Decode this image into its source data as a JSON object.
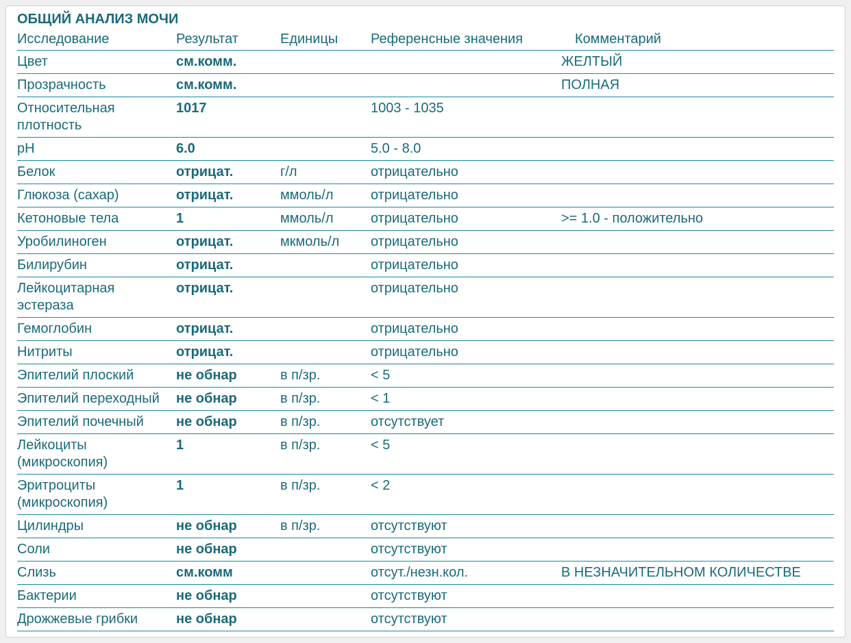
{
  "title": "ОБЩИЙ АНАЛИЗ МОЧИ",
  "colors": {
    "text": "#1a6a7a",
    "border": "#1a8a9a",
    "panel_bg": "#ffffff",
    "page_bg": "#f0f0f0"
  },
  "columns": {
    "study": "Исследование",
    "result": "Результат",
    "units": "Единицы",
    "reference": "Референсные значения",
    "comment": "Комментарий"
  },
  "rows": [
    {
      "study": "Цвет",
      "result": "см.комм.",
      "units": "",
      "reference": "",
      "comment": "ЖЕЛТЫЙ"
    },
    {
      "study": "Прозрачность",
      "result": "см.комм.",
      "units": "",
      "reference": "",
      "comment": "ПОЛНАЯ"
    },
    {
      "study": "Относительная плотность",
      "result": "1017",
      "units": "",
      "reference": "1003 - 1035",
      "comment": ""
    },
    {
      "study": "pH",
      "result": "6.0",
      "units": "",
      "reference": "5.0 - 8.0",
      "comment": ""
    },
    {
      "study": "Белок",
      "result": "отрицат.",
      "units": "г/л",
      "reference": "отрицательно",
      "comment": ""
    },
    {
      "study": "Глюкоза (сахар)",
      "result": "отрицат.",
      "units": "ммоль/л",
      "reference": "отрицательно",
      "comment": ""
    },
    {
      "study": "Кетоновые тела",
      "result": "1",
      "units": "ммоль/л",
      "reference": "отрицательно",
      "comment": ">= 1.0 - положительно"
    },
    {
      "study": "Уробилиноген",
      "result": "отрицат.",
      "units": "мкмоль/л",
      "reference": "отрицательно",
      "comment": ""
    },
    {
      "study": "Билирубин",
      "result": "отрицат.",
      "units": "",
      "reference": "отрицательно",
      "comment": ""
    },
    {
      "study": "Лейкоцитарная эстераза",
      "result": "отрицат.",
      "units": "",
      "reference": "отрицательно",
      "comment": ""
    },
    {
      "study": "Гемоглобин",
      "result": "отрицат.",
      "units": "",
      "reference": "отрицательно",
      "comment": ""
    },
    {
      "study": "Нитриты",
      "result": "отрицат.",
      "units": "",
      "reference": "отрицательно",
      "comment": ""
    },
    {
      "study": "Эпителий плоский",
      "result": "не обнар",
      "units": "в п/зр.",
      "reference": "< 5",
      "comment": ""
    },
    {
      "study": "Эпителий переходный",
      "result": "не обнар",
      "units": "в п/зр.",
      "reference": "< 1",
      "comment": ""
    },
    {
      "study": "Эпителий почечный",
      "result": "не обнар",
      "units": "в п/зр.",
      "reference": "отсутствует",
      "comment": ""
    },
    {
      "study": "Лейкоциты (микроскопия)",
      "result": "1",
      "units": "в п/зр.",
      "reference": "< 5",
      "comment": ""
    },
    {
      "study": "Эритроциты (микроскопия)",
      "result": "1",
      "units": "в п/зр.",
      "reference": "< 2",
      "comment": ""
    },
    {
      "study": "Цилиндры",
      "result": "не обнар",
      "units": "в п/зр.",
      "reference": "отсутствуют",
      "comment": ""
    },
    {
      "study": "Соли",
      "result": "не обнар",
      "units": "",
      "reference": "отсутствуют",
      "comment": ""
    },
    {
      "study": "Слизь",
      "result": "см.комм",
      "units": "",
      "reference": "отсут./незн.кол.",
      "comment": "В НЕЗНАЧИТЕЛЬНОМ КОЛИЧЕСТВЕ"
    },
    {
      "study": "Бактерии",
      "result": "не обнар",
      "units": "",
      "reference": "отсутствуют",
      "comment": ""
    },
    {
      "study": "Дрожжевые грибки",
      "result": "не обнар",
      "units": "",
      "reference": "отсутствуют",
      "comment": ""
    }
  ]
}
